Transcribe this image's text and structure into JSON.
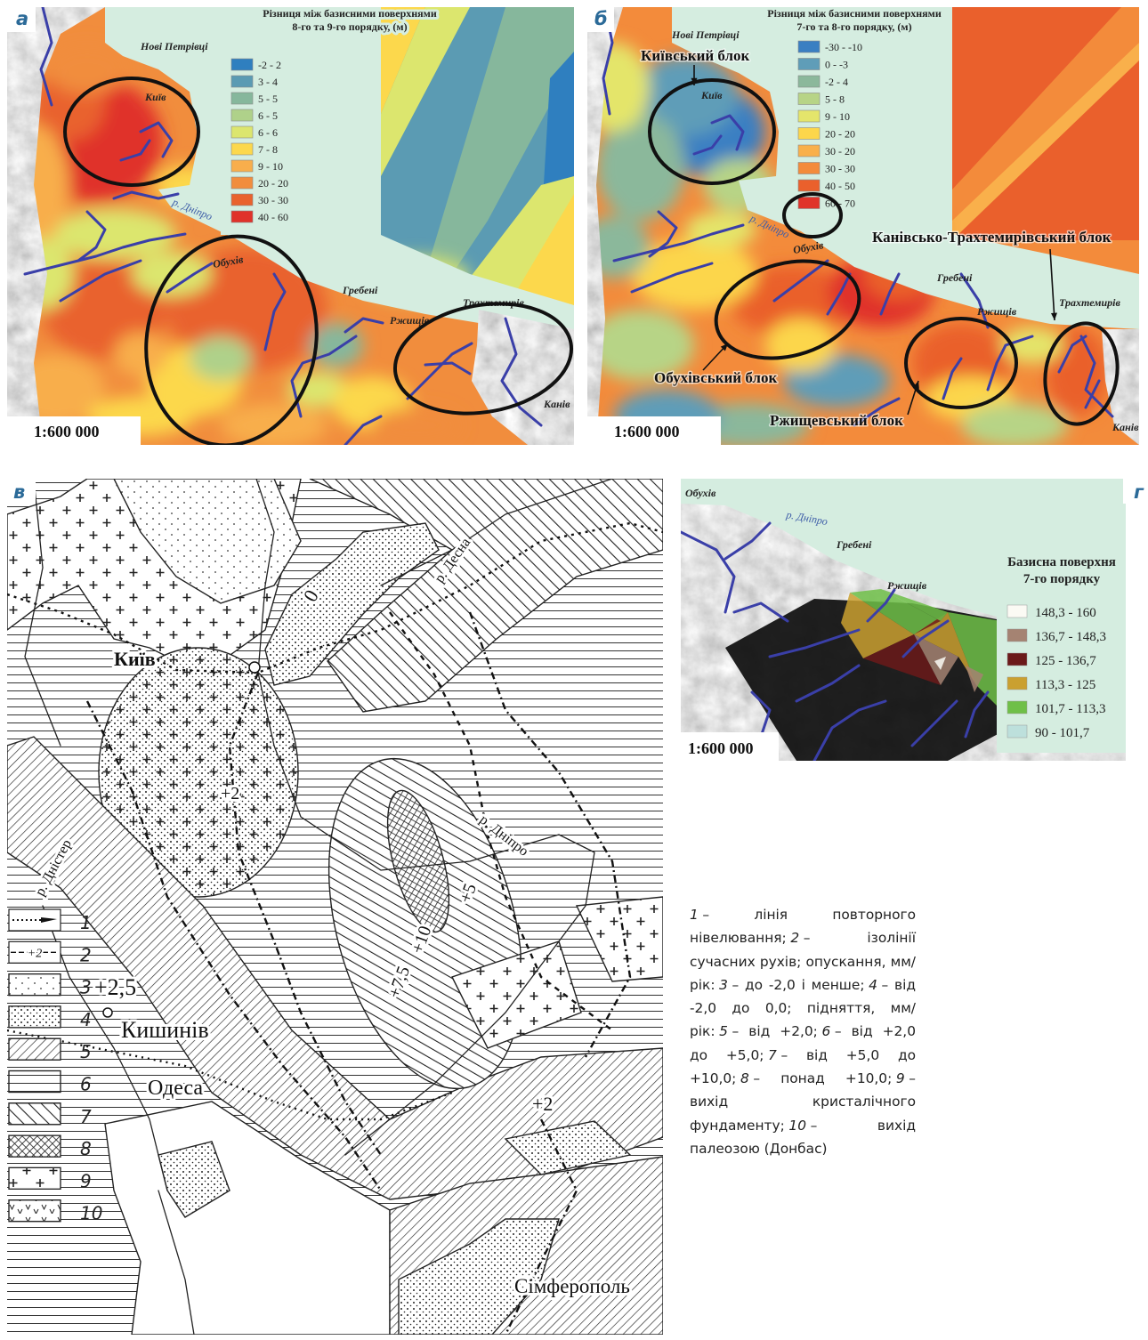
{
  "panel_a": {
    "letter": "а",
    "title": [
      "Різниця між базисними поверхнями",
      "8-го та 9-го порядку, (м)"
    ],
    "legend": [
      {
        "label": "-2 - 2",
        "color": "#2f7fbf"
      },
      {
        "label": "3 - 4",
        "color": "#5b9bb3"
      },
      {
        "label": "5 - 5",
        "color": "#86b79c"
      },
      {
        "label": "6 - 5",
        "color": "#afd18a"
      },
      {
        "label": "6 - 6",
        "color": "#dce66e"
      },
      {
        "label": "7 - 8",
        "color": "#fcd84c"
      },
      {
        "label": "9 - 10",
        "color": "#f8ae4c"
      },
      {
        "label": "20 - 20",
        "color": "#f18d3d"
      },
      {
        "label": "30 - 30",
        "color": "#e9622d"
      },
      {
        "label": "40 - 60",
        "color": "#e0322a"
      }
    ],
    "places": [
      "Нові Петрівці",
      "Київ",
      "р. Дніпро",
      "Обухів",
      "Гребені",
      "Ржищів",
      "Трахтемирів",
      "Канів"
    ],
    "scale": "1:600 000"
  },
  "panel_b": {
    "letter": "б",
    "title": [
      "Різниця між базисними поверхнями",
      "7-го та 8-го порядку, (м)"
    ],
    "legend": [
      {
        "label": "-30 - -10",
        "color": "#3a7fc2"
      },
      {
        "label": "0 - -3",
        "color": "#5f9db8"
      },
      {
        "label": "-2 - 4",
        "color": "#8bb89b"
      },
      {
        "label": "5 - 8",
        "color": "#b7d486"
      },
      {
        "label": "9 - 10",
        "color": "#e4e56b"
      },
      {
        "label": "20 - 20",
        "color": "#fcd64b"
      },
      {
        "label": "30 - 20",
        "color": "#f9b04b"
      },
      {
        "label": "30 - 30",
        "color": "#f38b3b"
      },
      {
        "label": "40 - 50",
        "color": "#ea602c"
      },
      {
        "label": "60 - 70",
        "color": "#e0332a"
      }
    ],
    "places": [
      "Нові Петрівці",
      "Київ",
      "р. Дніпро",
      "Обухів",
      "Гребені",
      "Ржищів",
      "Трахтемирів",
      "Канів"
    ],
    "blocks": [
      "Київський блок",
      "Канівсько-Трахтемирівський блок",
      "Обухівський блок",
      "Ржищевський блок"
    ],
    "scale": "1:600 000"
  },
  "panel_c": {
    "letter": "в",
    "places": [
      "Київ",
      "р. Десна",
      "р. Дніпро",
      "р. Дністер",
      "Кишинів",
      "Одеса",
      "Сімферополь"
    ],
    "isolines": [
      "+2",
      "+2,5",
      "+5",
      "+7,5",
      "+10",
      "+2",
      "0"
    ],
    "legend": [
      {
        "number": "1"
      },
      {
        "number": "2",
        "sample": "+2"
      },
      {
        "number": "3"
      },
      {
        "number": "4"
      },
      {
        "number": "5"
      },
      {
        "number": "6"
      },
      {
        "number": "7"
      },
      {
        "number": "8"
      },
      {
        "number": "9"
      },
      {
        "number": "10"
      }
    ]
  },
  "panel_d": {
    "letter": "г",
    "title": [
      "Базисна поверхня",
      "7-го порядку"
    ],
    "legend": [
      {
        "label": "148,3 - 160",
        "color": "#fbfaf4"
      },
      {
        "label": "136,7 - 148,3",
        "color": "#a58372"
      },
      {
        "label": "125 - 136,7",
        "color": "#6b1a1a"
      },
      {
        "label": "113,3 - 125",
        "color": "#caa030"
      },
      {
        "label": "101,7 - 113,3",
        "color": "#6fbf48"
      },
      {
        "label": "90 - 101,7",
        "color": "#bde0dc"
      }
    ],
    "places": [
      "Обухів",
      "р. Дніпро",
      "Гребені",
      "Ржищів"
    ],
    "scale": "1:600 000"
  },
  "caption": [
    {
      "num": "1",
      "text": "– лінія повторного нівелювання;"
    },
    {
      "num": "2",
      "text": "– ізолінії сучасних рухів; опускання, мм/рік:"
    },
    {
      "num": "3",
      "text": "– до -2,0 і менше;"
    },
    {
      "num": "4",
      "text": "– від -2,0 до 0,0; підняття, мм/рік:"
    },
    {
      "num": "5",
      "text": "– від +2,0;"
    },
    {
      "num": "6",
      "text": "– від +2,0 до +5,0;"
    },
    {
      "num": "7",
      "text": "– від +5,0 до +10,0;"
    },
    {
      "num": "8",
      "text": "– понад +10,0;"
    },
    {
      "num": "9",
      "text": "– вихід кристалічного фундаменту;"
    },
    {
      "num": "10",
      "text": "– вихід палеозою (Донбас)"
    }
  ]
}
